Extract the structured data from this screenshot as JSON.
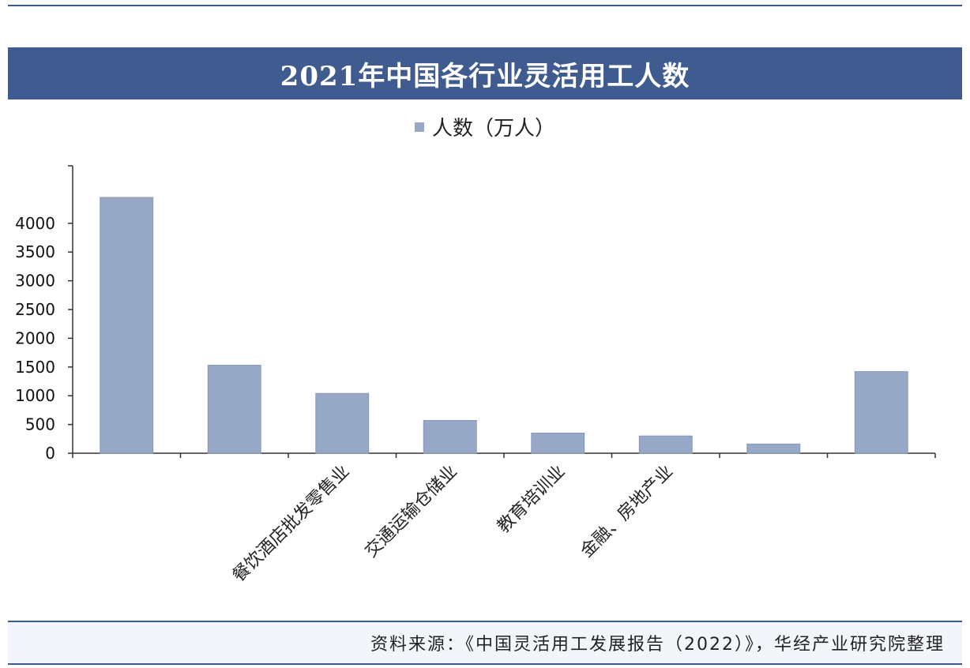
{
  "title": "2021年中国各行业灵活用工人数",
  "source": "资料来源：《中国灵活用工发展报告（2022）》，华经产业研究院整理",
  "colors": {
    "title_bar": "#3f5b8f",
    "bar": "#97a8c6",
    "axis": "#333333"
  },
  "chart_data": {
    "type": "bar",
    "legend": [
      "人数（万人）"
    ],
    "legend_placement": "top-center",
    "categories": [
      "",
      "",
      "餐饮酒店批发零售业",
      "交通运输仓储业",
      "教育培训业",
      "金融、房地产业",
      "",
      ""
    ],
    "series": [
      {
        "name": "人数（万人）",
        "values": [
          4450,
          1530,
          1040,
          570,
          350,
          300,
          160,
          1420
        ]
      }
    ],
    "ylim": [
      0,
      5000
    ],
    "yticks": [
      0,
      500,
      1000,
      1500,
      2000,
      2500,
      3000,
      3500,
      4000
    ],
    "grid": false
  }
}
